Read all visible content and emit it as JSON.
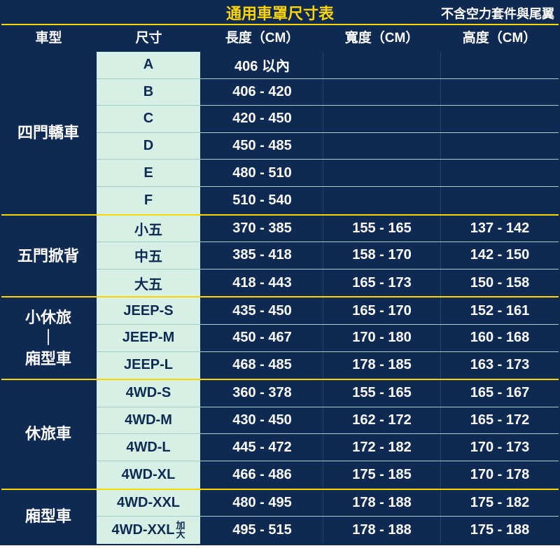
{
  "title": "通用車罩尺寸表",
  "note": "不含空力套件與尾翼",
  "headers": {
    "type": "車型",
    "size": "尺寸",
    "length": "長度（CM）",
    "width": "寬度（CM）",
    "height": "高度（CM）"
  },
  "colors": {
    "header_bg": "#0e2a52",
    "header_text": "#ffffff",
    "title_text": "#ffd500",
    "accent_border": "#ffd500",
    "size_bg": "#d6f0e6",
    "size_text": "#0e2a52",
    "val_bg": "#0e2a52",
    "val_text": "#ffffff"
  },
  "groups": [
    {
      "type": "四門轎車",
      "rows": [
        {
          "size": "A",
          "length": "406 以內",
          "width": "",
          "height": ""
        },
        {
          "size": "B",
          "length": "406 - 420",
          "width": "",
          "height": ""
        },
        {
          "size": "C",
          "length": "420 - 450",
          "width": "",
          "height": ""
        },
        {
          "size": "D",
          "length": "450 - 485",
          "width": "",
          "height": ""
        },
        {
          "size": "E",
          "length": "480 - 510",
          "width": "",
          "height": ""
        },
        {
          "size": "F",
          "length": "510 - 540",
          "width": "",
          "height": ""
        }
      ]
    },
    {
      "type": "五門掀背",
      "rows": [
        {
          "size": "小五",
          "length": "370 - 385",
          "width": "155 - 165",
          "height": "137 - 142"
        },
        {
          "size": "中五",
          "length": "385 - 418",
          "width": "158 - 170",
          "height": "142 - 150"
        },
        {
          "size": "大五",
          "length": "418 - 443",
          "width": "165 - 173",
          "height": "150 - 158"
        }
      ]
    },
    {
      "type": "小休旅\n｜\n廂型車",
      "rows": [
        {
          "size": "JEEP-S",
          "length": "435 - 450",
          "width": "165 - 170",
          "height": "152 - 161"
        },
        {
          "size": "JEEP-M",
          "length": "450 - 467",
          "width": "170 - 180",
          "height": "160 - 168"
        },
        {
          "size": "JEEP-L",
          "length": "468 - 485",
          "width": "178 - 185",
          "height": "163 - 173"
        }
      ]
    },
    {
      "type": "休旅車",
      "rows": [
        {
          "size": "4WD-S",
          "length": "360 - 378",
          "width": "155 - 165",
          "height": "165 - 167"
        },
        {
          "size": "4WD-M",
          "length": "430 - 450",
          "width": "162 - 172",
          "height": "165 - 172"
        },
        {
          "size": "4WD-L",
          "length": "445 - 472",
          "width": "172 - 182",
          "height": "170 - 173"
        },
        {
          "size": "4WD-XL",
          "length": "466 - 486",
          "width": "175 - 185",
          "height": "170 - 178"
        }
      ]
    },
    {
      "type": "廂型車",
      "rows": [
        {
          "size": "4WD-XXL",
          "suffix": "",
          "length": "480 - 495",
          "width": "178 - 188",
          "height": "175 - 182"
        },
        {
          "size": "4WD-XXL",
          "suffix": "加\n大",
          "length": "495 - 515",
          "width": "178 - 188",
          "height": "175 - 188"
        }
      ]
    }
  ]
}
